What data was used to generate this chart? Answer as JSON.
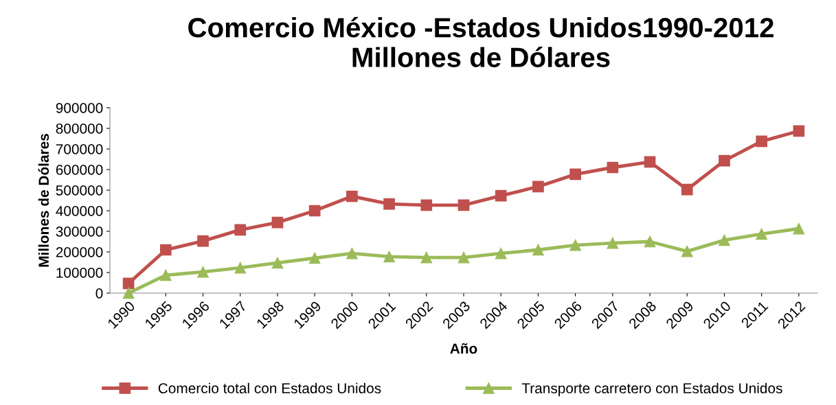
{
  "chart_data": {
    "type": "line",
    "title": "Comercio México -Estados Unidos1990-2012\nMillones de Dólares",
    "xlabel": "Año",
    "ylabel": "Millones de Dólares",
    "categories": [
      "1990",
      "1995",
      "1996",
      "1997",
      "1998",
      "1999",
      "2000",
      "2001",
      "2002",
      "2003",
      "2004",
      "2005",
      "2006",
      "2007",
      "2008",
      "2009",
      "2010",
      "2011",
      "2012"
    ],
    "series": [
      {
        "name": "Comercio total con Estados Unidos",
        "color": "#c0504d",
        "marker": "square",
        "values": [
          47000,
          210000,
          253000,
          307000,
          343000,
          400000,
          470000,
          433000,
          427000,
          427000,
          473000,
          517000,
          577000,
          610000,
          637000,
          503000,
          643000,
          737000,
          787000
        ]
      },
      {
        "name": "Transporte carretero con Estados Unidos",
        "color": "#9bbb59",
        "marker": "triangle",
        "values": [
          0,
          87000,
          103000,
          123000,
          147000,
          170000,
          193000,
          177000,
          173000,
          173000,
          193000,
          210000,
          233000,
          243000,
          250000,
          203000,
          257000,
          287000,
          313000
        ]
      }
    ],
    "ylim": [
      0,
      900000
    ],
    "yticks": [
      0,
      100000,
      200000,
      300000,
      400000,
      500000,
      600000,
      700000,
      800000,
      900000
    ],
    "grid": false,
    "legend": "bottom",
    "line_style": "solid"
  }
}
